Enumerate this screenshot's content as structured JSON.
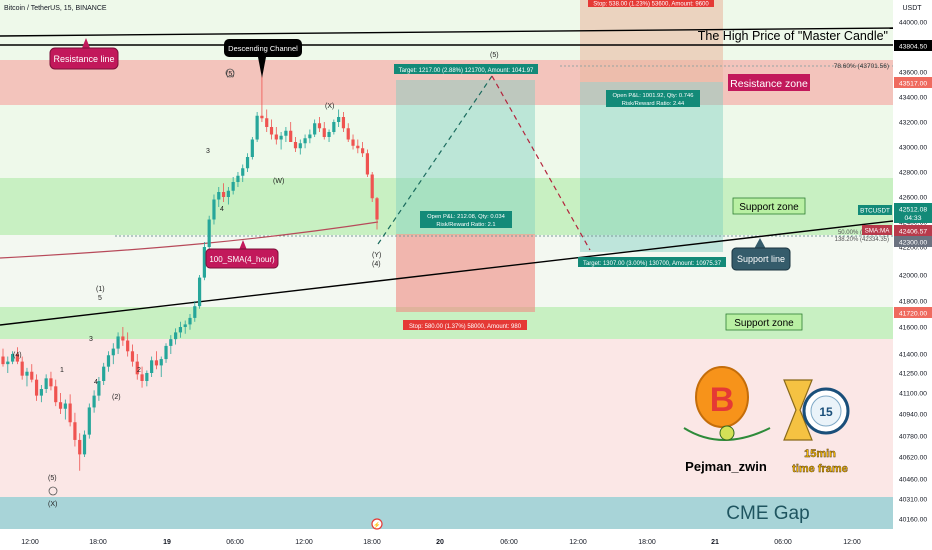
{
  "chart_data": {
    "type": "candlestick",
    "title": "Bitcoin / TetherUS, 15, BINANCE",
    "currency": "USDT",
    "ylim": [
      40080,
      44080
    ],
    "x_ticks": [
      "12:00",
      "18:00",
      "19",
      "06:00",
      "12:00",
      "18:00",
      "20",
      "06:00",
      "12:00",
      "18:00",
      "21",
      "06:00",
      "12:00"
    ],
    "y_ticks": [
      "44000.00",
      "43800.00",
      "43600.00",
      "43400.00",
      "43200.00",
      "43000.00",
      "42800.00",
      "42600.00",
      "42400.00",
      "42200.00",
      "42000.00",
      "41800.00",
      "41600.00",
      "41400.00",
      "41250.00",
      "41100.00",
      "40940.00",
      "40780.00",
      "40620.00",
      "40460.00",
      "40310.00",
      "40160.00"
    ],
    "y_tick_values": [
      44000,
      43800,
      43600,
      43400,
      43200,
      43000,
      42800,
      42600,
      42400,
      42200,
      42000,
      41800,
      41600,
      41400,
      41250,
      41100,
      40940,
      40780,
      40620,
      40460,
      40310,
      40160
    ],
    "price_labels": {
      "high_line": "43804.50",
      "resistance_top": "43517.00",
      "btc": "42512.08",
      "btc_timer": "04:33",
      "btc_name": "BTCUSDT",
      "sma_name": "SMA:MA",
      "sma_value": "42406.57",
      "support_top": "42300.00",
      "support_bottom": "41720.00"
    },
    "zones": {
      "resistance": [
        43350,
        43580
      ],
      "support_upper": [
        42300,
        42760
      ],
      "support_lower": [
        41520,
        41770
      ],
      "cme_gap": [
        40160,
        40330
      ]
    },
    "colors": {
      "up": "#26a69a",
      "down": "#ef5350",
      "resistance_zone": "#f6b3ab",
      "support_zone": "#b4ecb0",
      "cme_gap": "#a8d4d8",
      "label_pink": "#c2185b",
      "label_dark": "#355c6b",
      "label_green": "#b9f0a3"
    },
    "wave_labels_left": [
      "(4)",
      "1",
      "(1)",
      "5",
      "3",
      "4",
      "(2)",
      "2",
      "(5)",
      "(X)"
    ],
    "wave_labels_right": [
      "3",
      "4",
      "(W)",
      "(X)",
      "(Y)",
      "(4)",
      "(5)"
    ],
    "annotations": {
      "resistance_line": "Resistance line",
      "descending_channel": "Descending Channel",
      "high_price": "The High Price of \"Master Candle\"",
      "resistance_zone": "Resistance zone",
      "support_zone_upper": "Support zone",
      "support_zone_lower": "Support zone",
      "support_line": "Support line",
      "sma_label": "100_SMA(4_hour)",
      "cme_gap": "CME Gap",
      "fib_top": "78.60% (43701.56)",
      "fib_mid": "50.00% (42406.95)",
      "fib_low": "138.20% (42334.35)"
    },
    "long_position": {
      "target": "Target: 1217.00 (2.88%) 121700, Amount: 1041.97",
      "info": "Open P&L: 212.08, Qty: 0.034",
      "ratio": "Risk/Reward Ratio: 2.1",
      "stop": "Stop: 580.00 (1.37%) 58000, Amount: 980"
    },
    "short_position": {
      "stop": "Stop: 538.00 (1.23%) 53600, Amount: 9600",
      "info": "Open P&L: 1001.92, Qty: 0.746",
      "ratio": "Risk/Reward Ratio: 2.44",
      "target": "Target: 1307.00 (3.00%) 130700, Amount: 10975.37"
    },
    "logos": {
      "author": "Pejman_zwin",
      "timeframe_a": "15min",
      "timeframe_b": "time frame",
      "clock_number": "15"
    },
    "candles_ohlc": [
      [
        41380,
        41440,
        41300,
        41320
      ],
      [
        41320,
        41380,
        41250,
        41340
      ],
      [
        41340,
        41420,
        41320,
        41400
      ],
      [
        41400,
        41450,
        41320,
        41340
      ],
      [
        41340,
        41380,
        41200,
        41230
      ],
      [
        41230,
        41290,
        41150,
        41260
      ],
      [
        41260,
        41320,
        41180,
        41200
      ],
      [
        41200,
        41240,
        41040,
        41080
      ],
      [
        41080,
        41160,
        41030,
        41130
      ],
      [
        41130,
        41240,
        41100,
        41210
      ],
      [
        41210,
        41260,
        41120,
        41150
      ],
      [
        41150,
        41200,
        41000,
        41030
      ],
      [
        41030,
        41100,
        40940,
        40980
      ],
      [
        40980,
        41050,
        40900,
        41020
      ],
      [
        41020,
        41090,
        40850,
        40880
      ],
      [
        40880,
        40950,
        40700,
        40750
      ],
      [
        40750,
        40800,
        40520,
        40640
      ],
      [
        40640,
        40820,
        40620,
        40790
      ],
      [
        40790,
        41020,
        40760,
        40990
      ],
      [
        40990,
        41120,
        40950,
        41080
      ],
      [
        41080,
        41220,
        41040,
        41190
      ],
      [
        41190,
        41330,
        41160,
        41300
      ],
      [
        41300,
        41420,
        41260,
        41390
      ],
      [
        41390,
        41480,
        41320,
        41440
      ],
      [
        41440,
        41560,
        41400,
        41530
      ],
      [
        41530,
        41600,
        41460,
        41500
      ],
      [
        41500,
        41560,
        41380,
        41420
      ],
      [
        41420,
        41470,
        41300,
        41340
      ],
      [
        41340,
        41400,
        41200,
        41240
      ],
      [
        41240,
        41300,
        41140,
        41190
      ],
      [
        41190,
        41270,
        41150,
        41250
      ],
      [
        41250,
        41380,
        41220,
        41350
      ],
      [
        41350,
        41420,
        41280,
        41310
      ],
      [
        41310,
        41380,
        41220,
        41360
      ],
      [
        41360,
        41480,
        41330,
        41460
      ],
      [
        41460,
        41540,
        41400,
        41510
      ],
      [
        41510,
        41590,
        41470,
        41560
      ],
      [
        41560,
        41640,
        41520,
        41600
      ],
      [
        41600,
        41650,
        41550,
        41620
      ],
      [
        41620,
        41700,
        41580,
        41670
      ],
      [
        41670,
        41800,
        41640,
        41760
      ],
      [
        41760,
        42000,
        41740,
        41980
      ],
      [
        41980,
        42240,
        41960,
        42200
      ],
      [
        42200,
        42450,
        42160,
        42420
      ],
      [
        42420,
        42620,
        42380,
        42580
      ],
      [
        42580,
        42680,
        42520,
        42640
      ],
      [
        42640,
        42710,
        42560,
        42600
      ],
      [
        42600,
        42680,
        42540,
        42650
      ],
      [
        42650,
        42760,
        42620,
        42720
      ],
      [
        42720,
        42800,
        42680,
        42770
      ],
      [
        42770,
        42860,
        42720,
        42830
      ],
      [
        42830,
        42950,
        42800,
        42920
      ],
      [
        42920,
        43080,
        42900,
        43060
      ],
      [
        43060,
        43280,
        43040,
        43250
      ],
      [
        43250,
        43620,
        43200,
        43230
      ],
      [
        43230,
        43300,
        43120,
        43160
      ],
      [
        43160,
        43220,
        43060,
        43100
      ],
      [
        43100,
        43160,
        43020,
        43060
      ],
      [
        43060,
        43120,
        42980,
        43090
      ],
      [
        43090,
        43160,
        43040,
        43130
      ],
      [
        43130,
        43200,
        43080,
        43040
      ],
      [
        43040,
        43080,
        42960,
        42990
      ],
      [
        42990,
        43060,
        42940,
        43030
      ],
      [
        43030,
        43100,
        42990,
        43070
      ],
      [
        43070,
        43140,
        43030,
        43100
      ],
      [
        43100,
        43220,
        43080,
        43190
      ],
      [
        43190,
        43240,
        43120,
        43150
      ],
      [
        43150,
        43200,
        43060,
        43080
      ],
      [
        43080,
        43140,
        43040,
        43120
      ],
      [
        43120,
        43220,
        43100,
        43200
      ],
      [
        43200,
        43300,
        43160,
        43240
      ],
      [
        43240,
        43280,
        43120,
        43150
      ],
      [
        43150,
        43190,
        43040,
        43060
      ],
      [
        43060,
        43100,
        42980,
        43010
      ],
      [
        43010,
        43060,
        42950,
        42990
      ],
      [
        42990,
        43040,
        42920,
        42950
      ],
      [
        42950,
        42980,
        42760,
        42780
      ],
      [
        42780,
        42800,
        42560,
        42590
      ],
      [
        42590,
        42600,
        42340,
        42420
      ]
    ]
  }
}
